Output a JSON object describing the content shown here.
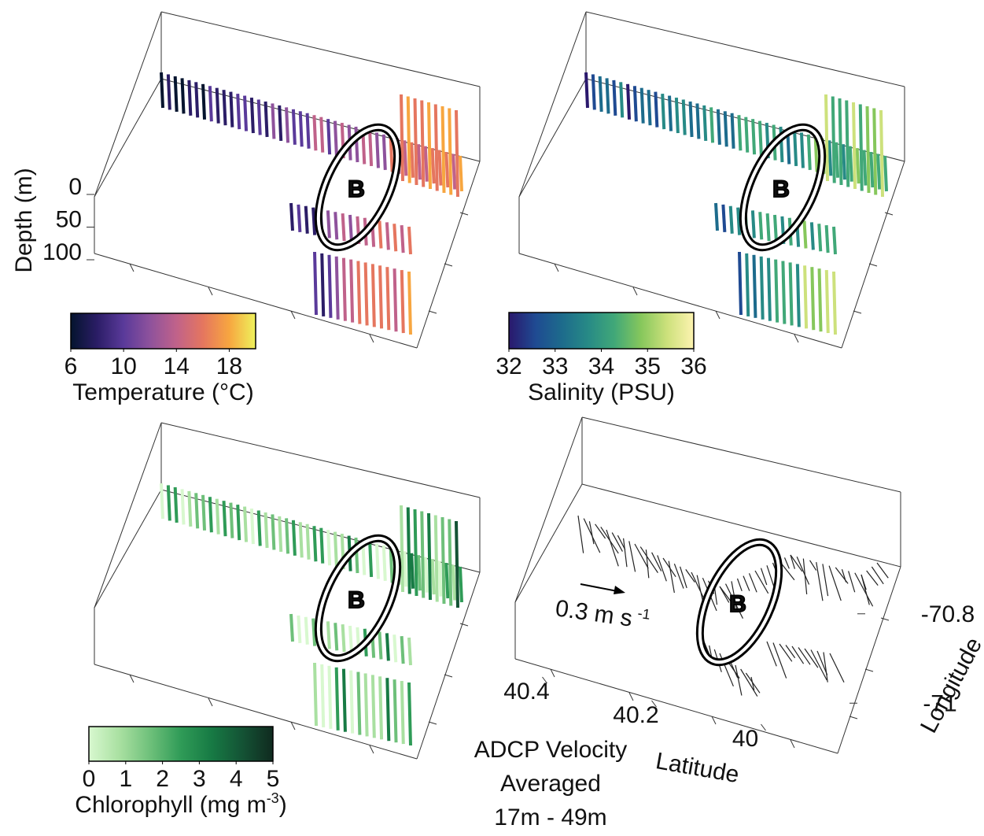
{
  "panels": [
    {
      "axis_label": "Depth (m)",
      "depth_ticks": [
        0,
        50,
        100
      ],
      "depth_lim": [
        0,
        100
      ],
      "annotation": "B",
      "colorbar": {
        "label": "Temperature (°C)",
        "lim": [
          6,
          20
        ],
        "ticks": [
          6,
          10,
          14,
          18
        ],
        "colors": [
          "#04142e",
          "#2b1d66",
          "#5a3a9a",
          "#8e529c",
          "#c0628a",
          "#e5765f",
          "#f7a640",
          "#eef25c"
        ]
      }
    },
    {
      "annotation": "B",
      "colorbar": {
        "label": "Salinity (PSU)",
        "lim": [
          32,
          36
        ],
        "ticks": [
          32,
          33,
          34,
          35,
          36
        ],
        "colors": [
          "#2a186c",
          "#1f4a92",
          "#1d6b8c",
          "#278a86",
          "#41a878",
          "#86c75c",
          "#cde17c",
          "#fdf3b0"
        ]
      }
    },
    {
      "annotation": "B",
      "colorbar": {
        "label": "Chlorophyll (mg m",
        "label_sup": "-3",
        "label_end": ")",
        "lim": [
          0,
          5
        ],
        "ticks": [
          0,
          1,
          2,
          3,
          4,
          5
        ],
        "colors": [
          "#d8f8cf",
          "#a9e0a1",
          "#6ec07a",
          "#2f9b57",
          "#177a44",
          "#145335",
          "#102a1f"
        ]
      }
    },
    {
      "annotation": "B",
      "scale_label": "0.3 m s",
      "scale_sup": "-1",
      "latitude": {
        "label": "Latitude",
        "ticks": [
          40.4,
          40.2,
          40
        ],
        "lim": [
          40.5,
          39.9
        ]
      },
      "longitude": {
        "label": "Longitude",
        "ticks": [
          -70.8,
          -71
        ],
        "lim": [
          -70.7,
          -71.1
        ]
      },
      "caption": [
        "ADCP Velocity",
        "Averaged",
        "17m - 49m"
      ]
    }
  ]
}
